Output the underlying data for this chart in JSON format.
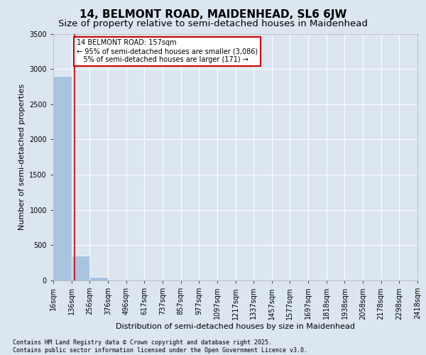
{
  "title": "14, BELMONT ROAD, MAIDENHEAD, SL6 6JW",
  "subtitle": "Size of property relative to semi-detached houses in Maidenhead",
  "xlabel": "Distribution of semi-detached houses by size in Maidenhead",
  "ylabel": "Number of semi-detached properties",
  "bar_edges": [
    16,
    136,
    256,
    376,
    496,
    617,
    737,
    857,
    977,
    1097,
    1217,
    1337,
    1457,
    1577,
    1697,
    1818,
    1938,
    2058,
    2178,
    2298,
    2418
  ],
  "bar_labels": [
    "16sqm",
    "136sqm",
    "256sqm",
    "376sqm",
    "496sqm",
    "617sqm",
    "737sqm",
    "857sqm",
    "977sqm",
    "1097sqm",
    "1217sqm",
    "1337sqm",
    "1457sqm",
    "1577sqm",
    "1697sqm",
    "1818sqm",
    "1938sqm",
    "2058sqm",
    "2178sqm",
    "2298sqm",
    "2418sqm"
  ],
  "bar_values": [
    2900,
    350,
    50,
    5,
    2,
    1,
    0,
    0,
    0,
    0,
    0,
    0,
    0,
    0,
    0,
    0,
    0,
    0,
    0,
    0
  ],
  "bar_color": "#a8c4e0",
  "property_size": 157,
  "property_line_color": "#cc0000",
  "ylim": [
    0,
    3500
  ],
  "yticks": [
    0,
    500,
    1000,
    1500,
    2000,
    2500,
    3000,
    3500
  ],
  "annotation_text": "14 BELMONT ROAD: 157sqm\n← 95% of semi-detached houses are smaller (3,086)\n   5% of semi-detached houses are larger (171) →",
  "annotation_box_color": "#ffffff",
  "annotation_box_edge": "#cc0000",
  "background_color": "#dce6f0",
  "plot_bg_color": "#dce6f0",
  "footer_text": "Contains HM Land Registry data © Crown copyright and database right 2025.\nContains public sector information licensed under the Open Government Licence v3.0.",
  "title_fontsize": 11,
  "subtitle_fontsize": 9.5,
  "label_fontsize": 8,
  "tick_fontsize": 7,
  "footer_fontsize": 6
}
